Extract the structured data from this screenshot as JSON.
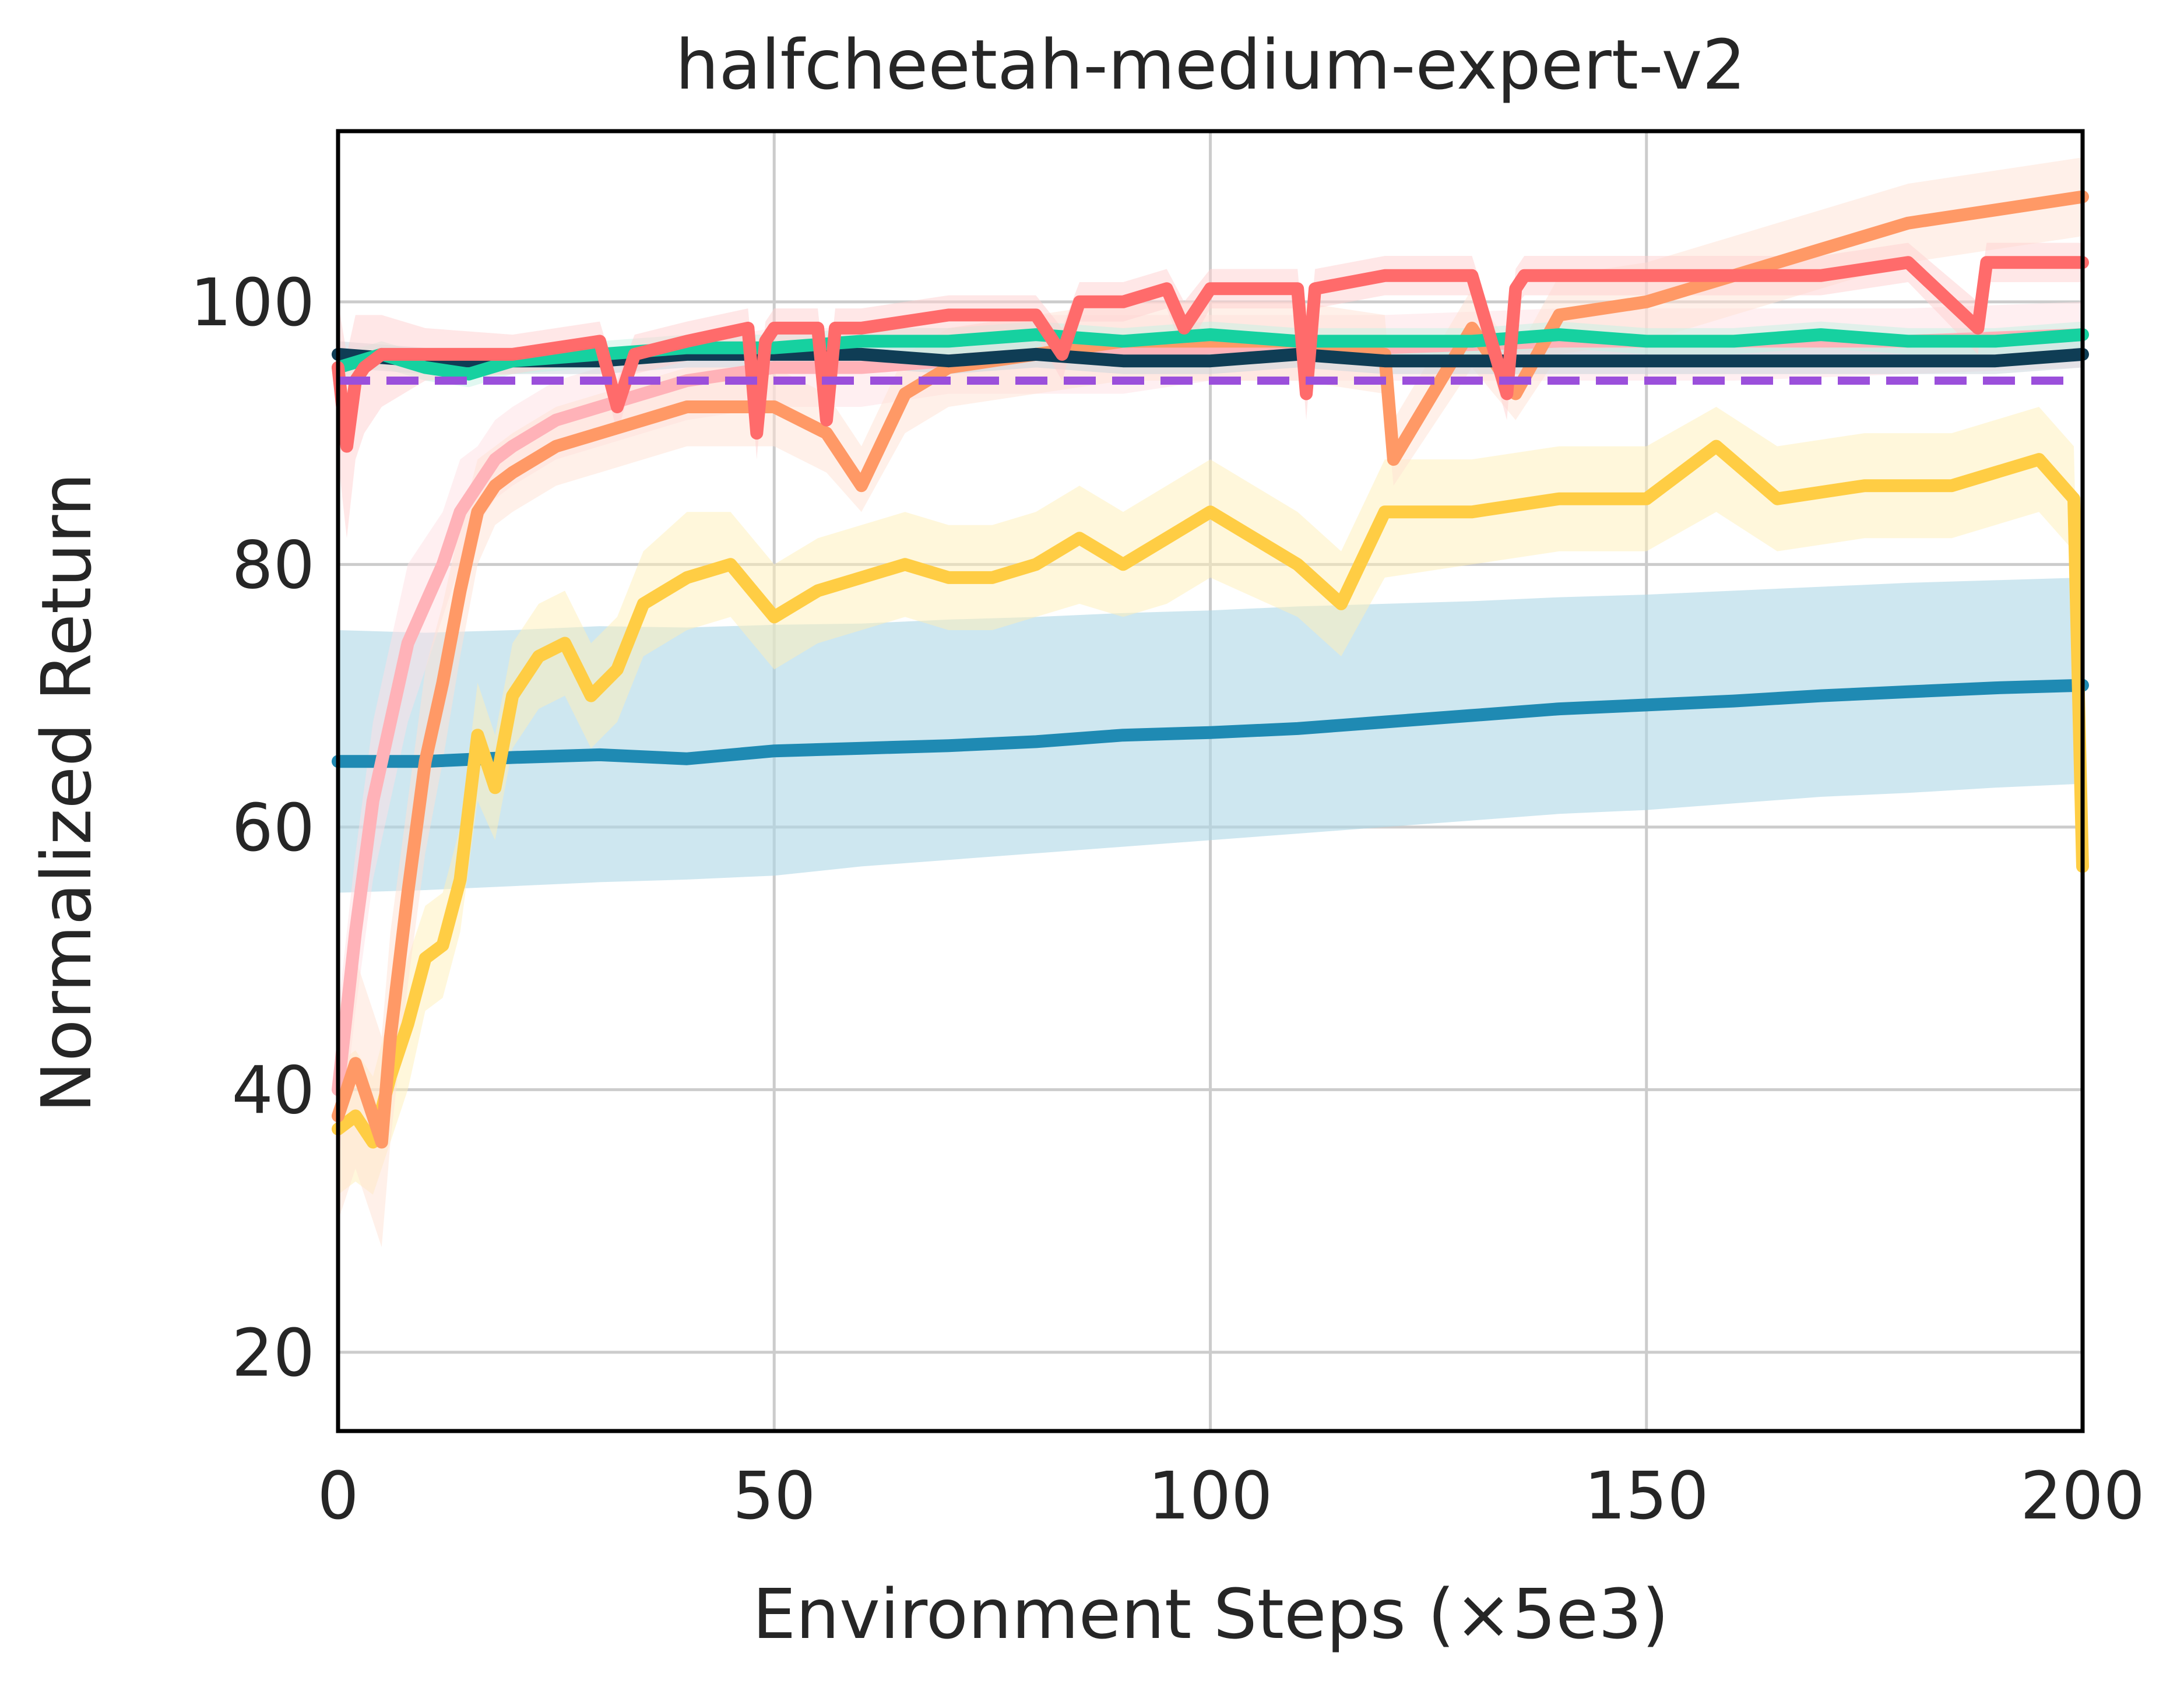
{
  "chart_data": {
    "type": "line",
    "title": "halfcheetah-medium-expert-v2",
    "xlabel": "Environment Steps (×5e3)",
    "ylabel": "Normalized Return",
    "xlim": [
      0,
      200
    ],
    "ylim": [
      14,
      113
    ],
    "xticks": [
      0,
      50,
      100,
      150,
      200
    ],
    "yticks": [
      20,
      40,
      60,
      80,
      100
    ],
    "x_tick_labels": [
      "0",
      "50",
      "100",
      "150",
      "200"
    ],
    "y_tick_labels": [
      "20",
      "40",
      "60",
      "80",
      "100"
    ],
    "grid": true,
    "legend": "none",
    "reference_line": {
      "y": 94,
      "color": "#9b4fdb",
      "style": "dashed"
    },
    "series": [
      {
        "color": "#1f8ab3",
        "band_color": "#aed7e6",
        "x": [
          0,
          10,
          20,
          30,
          40,
          50,
          60,
          70,
          80,
          90,
          100,
          110,
          120,
          130,
          140,
          150,
          160,
          170,
          180,
          190,
          200
        ],
        "y": [
          65,
          65,
          65.3,
          65.5,
          65.2,
          65.8,
          66,
          66.2,
          66.5,
          67,
          67.2,
          67.5,
          68,
          68.5,
          69,
          69.3,
          69.6,
          70,
          70.3,
          70.6,
          70.8
        ],
        "low": [
          55,
          55.2,
          55.5,
          55.8,
          56,
          56.3,
          57,
          57.5,
          58,
          58.5,
          59,
          59.5,
          60,
          60.5,
          61,
          61.3,
          61.8,
          62.3,
          62.6,
          63,
          63.3
        ],
        "high": [
          75,
          74.8,
          75,
          75.3,
          75.2,
          75.4,
          75.5,
          75.8,
          76,
          76.3,
          76.5,
          76.8,
          77,
          77.2,
          77.5,
          77.7,
          78,
          78.3,
          78.6,
          78.8,
          79
        ]
      },
      {
        "color": "#ffcd44",
        "band_color": "#fff0b8",
        "x": [
          0,
          2,
          4,
          6,
          8,
          10,
          12,
          14,
          16,
          18,
          20,
          23,
          26,
          29,
          32,
          35,
          40,
          45,
          50,
          55,
          60,
          65,
          70,
          75,
          80,
          85,
          90,
          95,
          100,
          110,
          115,
          120,
          130,
          140,
          150,
          158,
          165,
          175,
          185,
          195,
          199,
          200
        ],
        "y": [
          37,
          38,
          36,
          41,
          45,
          50,
          51,
          56,
          67,
          63,
          70,
          73,
          74,
          70,
          72,
          77,
          79,
          80,
          76,
          78,
          79,
          80,
          79,
          79,
          80,
          82,
          80,
          82,
          84,
          80,
          77,
          84,
          84,
          85,
          85,
          89,
          85,
          86,
          86,
          88,
          85,
          57
        ],
        "low": [
          32,
          33,
          32,
          36,
          40,
          46,
          47,
          52,
          62,
          59,
          66,
          69,
          70,
          66,
          68,
          73,
          75,
          76,
          72,
          74,
          75,
          76,
          75,
          75,
          76,
          77,
          76,
          77,
          79,
          76,
          73,
          79,
          80,
          81,
          81,
          84,
          81,
          82,
          82,
          84,
          81,
          55
        ],
        "high": [
          42,
          43,
          41,
          46,
          50,
          54,
          55,
          60,
          71,
          67,
          74,
          77,
          78,
          74,
          76,
          81,
          84,
          84,
          80,
          82,
          83,
          84,
          83,
          83,
          84,
          86,
          84,
          86,
          88,
          84,
          81,
          88,
          88,
          89,
          89,
          92,
          89,
          90,
          90,
          92,
          89,
          60
        ]
      },
      {
        "color": "#ffb2b8",
        "band_color": "#ffe0e3",
        "x": [
          0,
          2,
          4,
          6,
          8,
          10,
          12,
          14,
          16,
          18,
          20,
          25,
          30,
          35,
          40,
          50,
          60,
          70,
          80,
          90,
          100,
          120,
          140,
          160,
          180,
          200
        ],
        "y": [
          40,
          52,
          62,
          68,
          74,
          77,
          80,
          84,
          86,
          88,
          89,
          91,
          92,
          93,
          94,
          95,
          95,
          95.5,
          96,
          96,
          96.5,
          96.5,
          97,
          97,
          97,
          97.5
        ],
        "low": [
          34,
          46,
          56,
          62,
          68,
          72,
          76,
          80,
          83,
          85,
          86,
          88,
          89,
          90,
          91,
          92,
          92,
          93,
          93,
          93,
          94,
          94,
          94,
          94,
          94.5,
          95
        ],
        "high": [
          46,
          58,
          68,
          74,
          80,
          82,
          84,
          88,
          89,
          91,
          92,
          94,
          95,
          96,
          97,
          98,
          98,
          98,
          99,
          99,
          99,
          99,
          99.5,
          99.5,
          99.5,
          100
        ]
      },
      {
        "color": "#ff9966",
        "band_color": "#ffe1d3",
        "x": [
          0,
          2,
          4,
          5,
          6,
          8,
          10,
          12,
          14,
          16,
          18,
          20,
          25,
          30,
          35,
          40,
          50,
          56,
          60,
          65,
          70,
          80,
          90,
          100,
          110,
          120,
          121,
          130,
          135,
          140,
          150,
          160,
          170,
          180,
          190,
          200
        ],
        "y": [
          38,
          42,
          38,
          36,
          44,
          55,
          65,
          71,
          78,
          84,
          86,
          87,
          89,
          90,
          91,
          92,
          92,
          90,
          86,
          93,
          95,
          96,
          97,
          97,
          97,
          96,
          88,
          98,
          93,
          99,
          100,
          102,
          104,
          106,
          107,
          108
        ],
        "low": [
          30,
          34,
          30,
          28,
          36,
          48,
          58,
          65,
          73,
          80,
          83,
          84,
          86,
          87,
          88,
          89,
          89,
          87,
          84,
          90,
          92,
          93,
          94,
          94,
          94,
          93,
          86,
          95,
          91,
          96,
          97,
          99,
          101,
          103,
          104,
          105
        ],
        "high": [
          46,
          50,
          46,
          44,
          52,
          62,
          72,
          77,
          83,
          88,
          89,
          90,
          92,
          93,
          94,
          95,
          95,
          93,
          89,
          96,
          98,
          99,
          100,
          100,
          100,
          99,
          91,
          101,
          96,
          102,
          103,
          105,
          107,
          109,
          110,
          111
        ]
      },
      {
        "color": "#0f3d55",
        "band_color": "#c8d4dc",
        "x": [
          0,
          10,
          20,
          30,
          40,
          50,
          60,
          70,
          80,
          90,
          100,
          110,
          120,
          130,
          140,
          150,
          160,
          170,
          180,
          190,
          200
        ],
        "y": [
          96,
          95.5,
          95.5,
          95.5,
          96,
          96,
          96,
          95.5,
          96,
          95.5,
          95.5,
          96,
          95.5,
          95.5,
          95.5,
          95.5,
          95.5,
          95.5,
          95.5,
          95.5,
          96
        ],
        "low": [
          95,
          94.5,
          94.5,
          94.5,
          95,
          95,
          95,
          94.5,
          95,
          94.5,
          94.5,
          95,
          94.5,
          94.5,
          94.5,
          94.5,
          94.5,
          94.5,
          94.5,
          94.5,
          95
        ],
        "high": [
          97,
          96.5,
          96.5,
          96.5,
          97,
          97,
          97,
          96.5,
          97,
          96.5,
          96.5,
          97,
          96.5,
          96.5,
          96.5,
          96.5,
          96.5,
          96.5,
          96.5,
          96.5,
          97
        ]
      },
      {
        "color": "#16d1a0",
        "band_color": "#c4f2e4",
        "x": [
          0,
          5,
          10,
          15,
          20,
          30,
          40,
          50,
          60,
          70,
          80,
          90,
          100,
          110,
          120,
          130,
          140,
          150,
          160,
          170,
          180,
          190,
          200
        ],
        "y": [
          95,
          96,
          95,
          94.5,
          95.5,
          96,
          96.5,
          96.5,
          97,
          97,
          97.5,
          97,
          97.5,
          97,
          97,
          97,
          97.5,
          97,
          97,
          97.5,
          97,
          97,
          97.5
        ],
        "low": [
          94,
          95,
          94,
          93.5,
          94.5,
          95,
          95.5,
          95.5,
          96,
          96,
          96.5,
          96,
          96.5,
          96,
          96,
          96,
          96.5,
          96,
          96,
          96.5,
          96,
          96,
          96.5
        ],
        "high": [
          96,
          97,
          96,
          95.5,
          96.5,
          97,
          97.5,
          97.5,
          98,
          98,
          98.5,
          98,
          98.5,
          98,
          98,
          98,
          98.5,
          98,
          98,
          98.5,
          98,
          98,
          98.5
        ]
      },
      {
        "color": "#ff6b6b",
        "band_color": "#ffd0d0",
        "x": [
          0,
          1,
          2,
          3,
          5,
          10,
          20,
          30,
          32,
          34,
          40,
          47,
          48,
          49,
          50,
          55,
          56,
          57,
          60,
          70,
          80,
          83,
          85,
          90,
          95,
          97,
          100,
          110,
          111,
          112,
          120,
          130,
          134,
          135,
          136,
          140,
          150,
          160,
          170,
          180,
          188,
          189,
          190,
          200
        ],
        "y": [
          95,
          89,
          94,
          95,
          96,
          96,
          96,
          97,
          92,
          96,
          97,
          98,
          90,
          97,
          98,
          98,
          91,
          98,
          98,
          99,
          99,
          96,
          100,
          100,
          101,
          98,
          101,
          101,
          93,
          101,
          102,
          102,
          93,
          101,
          102,
          102,
          102,
          102,
          102,
          103,
          98,
          103,
          103,
          103
        ],
        "low": [
          88,
          82,
          88,
          90,
          92,
          94,
          94.5,
          95.5,
          90,
          94.5,
          95.5,
          96.5,
          88,
          95.5,
          96.5,
          96.5,
          89,
          96.5,
          96.5,
          97.5,
          97.5,
          94,
          98.5,
          98.5,
          99.5,
          96,
          99.5,
          99.5,
          91,
          99.5,
          100.5,
          100.5,
          91,
          99.5,
          100.5,
          100.5,
          100.5,
          100.5,
          100.5,
          101.5,
          96,
          101.5,
          101.5,
          101.5
        ],
        "high": [
          100,
          96,
          99,
          99,
          99,
          98,
          97.5,
          98.5,
          94,
          97.5,
          98.5,
          99.5,
          92,
          98.5,
          99.5,
          99.5,
          93,
          99.5,
          99.5,
          100.5,
          100.5,
          98,
          101.5,
          101.5,
          102.5,
          100,
          102.5,
          102.5,
          95,
          102.5,
          103.5,
          103.5,
          95,
          102.5,
          103.5,
          103.5,
          103.5,
          103.5,
          103.5,
          104.5,
          100,
          104.5,
          104.5,
          104.5
        ]
      }
    ]
  }
}
